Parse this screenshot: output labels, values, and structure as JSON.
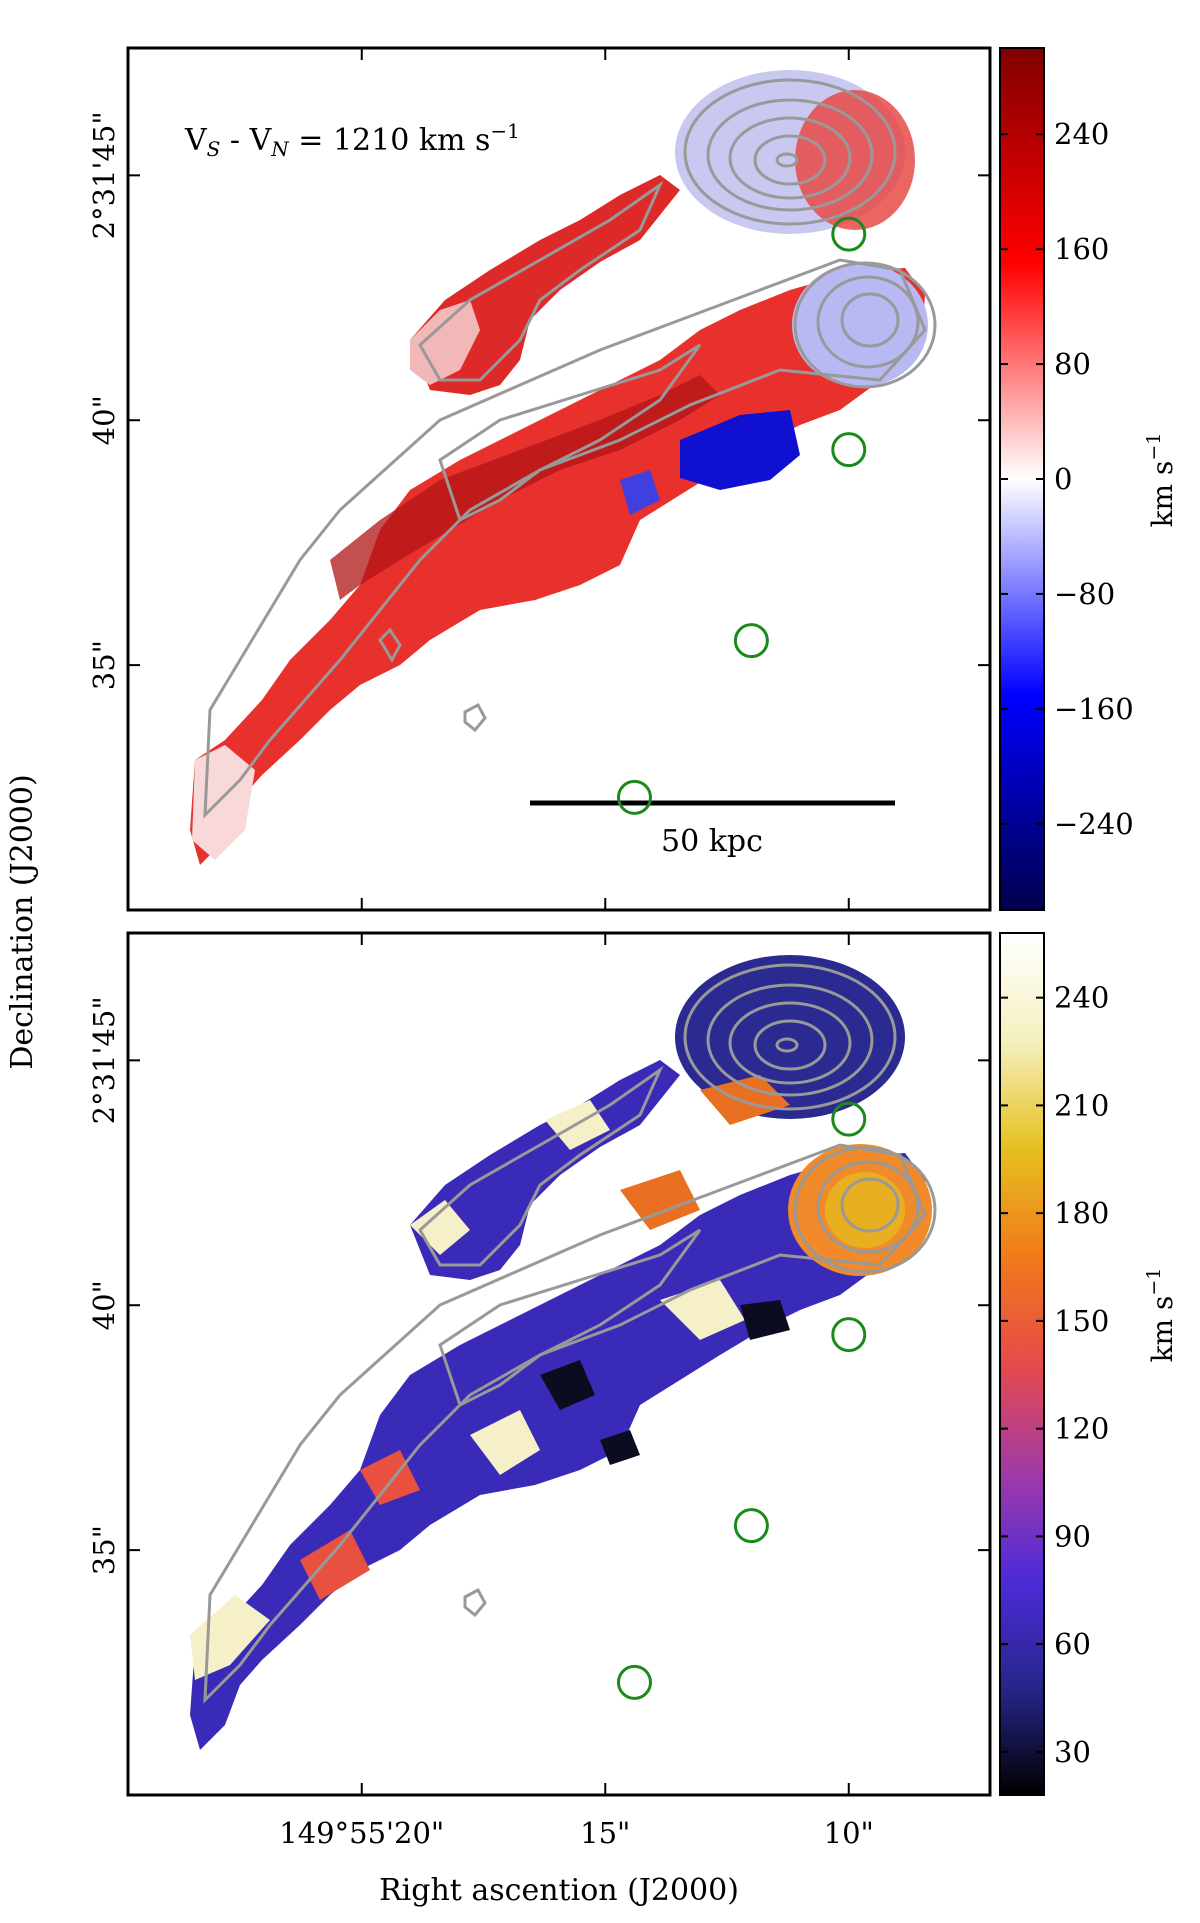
{
  "figure": {
    "xlabel": "Right ascention (J2000)",
    "ylabel": "Declination (J2000)",
    "x_ticks": [
      "149°55'20\"",
      "15\"",
      "10\""
    ],
    "y_ticks": [
      "2°31'45\"",
      "40\"",
      "35\""
    ]
  },
  "chart_data": [
    {
      "type": "heatmap",
      "panel": "top",
      "quantity": "velocity",
      "annotation": "V_S - V_N = 1210 km s^-1",
      "annotation_parts": {
        "v1": "V",
        "s1": "S",
        "mid": " - V",
        "s2": "N",
        "rest": " = 1210 km s",
        "exp": "−1"
      },
      "scale_bar": "50 kpc",
      "colorbar": {
        "label": "km s",
        "label_exp": "−1",
        "colormap": "seismic",
        "range": [
          -300,
          300
        ],
        "ticks": [
          "240",
          "160",
          "80",
          "0",
          "−80",
          "−160",
          "−240"
        ],
        "tick_values": [
          240,
          160,
          80,
          0,
          -80,
          -160,
          -240
        ],
        "colors": [
          "#00004c",
          "#0000ff",
          "#ffffff",
          "#ff0000",
          "#800000"
        ]
      },
      "x_range_arcsec": [
        24.8,
        7.1
      ],
      "y_range_arcsec": [
        30.0,
        47.6
      ],
      "markers": [
        {
          "x": 10.0,
          "y": 43.8
        },
        {
          "x": 10.0,
          "y": 39.4
        },
        {
          "x": 12.0,
          "y": 35.5
        },
        {
          "x": 14.4,
          "y": 32.3
        }
      ]
    },
    {
      "type": "heatmap",
      "panel": "bottom",
      "quantity": "velocity dispersion",
      "colorbar": {
        "label": "km s",
        "label_exp": "−1",
        "colormap": "CMRmap",
        "range": [
          18,
          258
        ],
        "ticks": [
          "240",
          "210",
          "180",
          "150",
          "120",
          "90",
          "60",
          "30"
        ],
        "tick_values": [
          240,
          210,
          180,
          150,
          120,
          90,
          60,
          30
        ],
        "colors": [
          "#000000",
          "#26268c",
          "#4d2bd9",
          "#a23aa6",
          "#e64a4a",
          "#f07a1a",
          "#e6c01f",
          "#f5f0c0",
          "#ffffff"
        ]
      },
      "x_range_arcsec": [
        24.8,
        7.1
      ],
      "y_range_arcsec": [
        30.0,
        47.6
      ],
      "markers": [
        {
          "x": 10.0,
          "y": 43.8
        },
        {
          "x": 10.0,
          "y": 39.4
        },
        {
          "x": 12.0,
          "y": 35.5
        },
        {
          "x": 14.4,
          "y": 32.3
        }
      ]
    }
  ]
}
